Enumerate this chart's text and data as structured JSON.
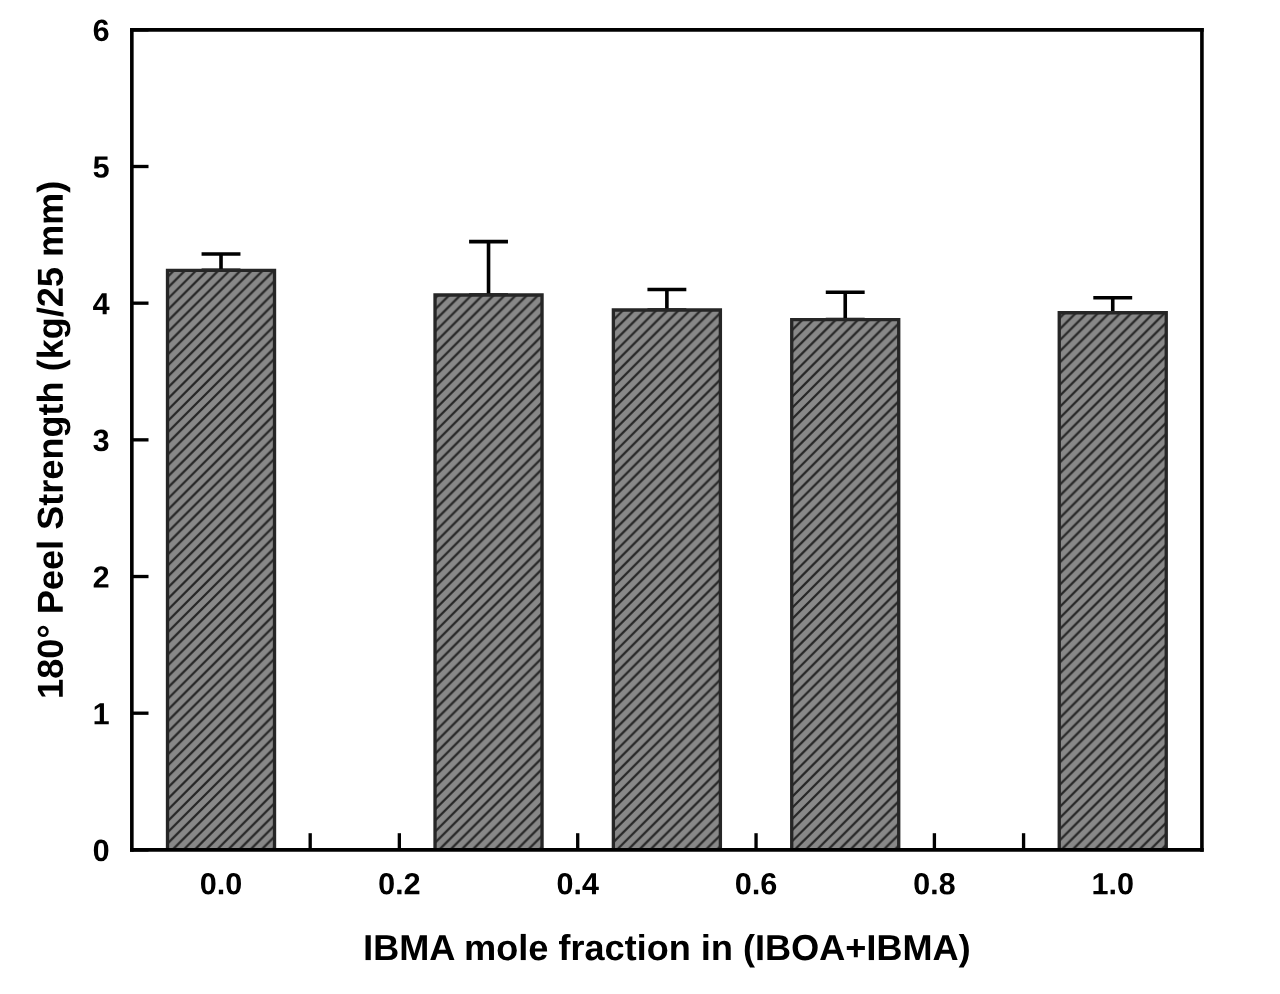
{
  "chart_data": {
    "type": "bar",
    "xlabel": "IBMA mole fraction in (IBOA+IBMA)",
    "ylabel": "180° Peel Strength (kg/25 mm)",
    "x": [
      0.0,
      0.3,
      0.5,
      0.7,
      1.0
    ],
    "values": [
      4.24,
      4.06,
      3.95,
      3.88,
      3.93
    ],
    "errors": [
      [
        4.24,
        4.36
      ],
      [
        4.06,
        4.45
      ],
      [
        3.95,
        4.1
      ],
      [
        3.88,
        4.08
      ],
      [
        3.93,
        4.04
      ]
    ],
    "color": "#262626",
    "xlim": [
      -0.1,
      1.1
    ],
    "xticks": [
      {
        "value": 0.0,
        "label": "0.0"
      },
      {
        "value": 0.1,
        "label": null
      },
      {
        "value": 0.2,
        "label": "0.2"
      },
      {
        "value": 0.3,
        "label": null
      },
      {
        "value": 0.4,
        "label": "0.4"
      },
      {
        "value": 0.5,
        "label": null
      },
      {
        "value": 0.6,
        "label": "0.6"
      },
      {
        "value": 0.7,
        "label": null
      },
      {
        "value": 0.8,
        "label": "0.8"
      },
      {
        "value": 0.9,
        "label": null
      },
      {
        "value": 1.0,
        "label": "1.0"
      }
    ],
    "ylim": [
      0,
      6
    ],
    "yticks": [
      0,
      1,
      2,
      3,
      4,
      5,
      6
    ],
    "grid": false,
    "legend": false
  }
}
